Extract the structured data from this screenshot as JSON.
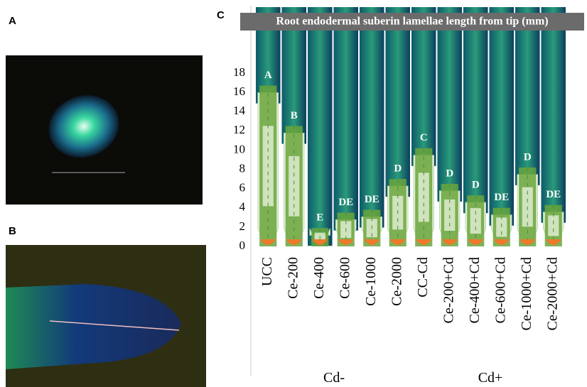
{
  "panels": [
    "A",
    "B",
    "C"
  ],
  "chart_data": {
    "type": "bar",
    "title": "Root endodermal suberin lamellae length from tip (mm)",
    "categories": [
      "UCC",
      "Ce-200",
      "Ce-400",
      "Ce-600",
      "Ce-1000",
      "Ce-2000",
      "CC-Cd",
      "Ce-200+Cd",
      "Ce-400+Cd",
      "Ce-600+Cd",
      "Ce-1000+Cd",
      "Ce-2000+Cd"
    ],
    "values": [
      16.7,
      12.5,
      1.9,
      3.5,
      3.8,
      7.0,
      10.2,
      6.5,
      5.3,
      4.0,
      8.2,
      4.3
    ],
    "annotations": [
      "A",
      "B",
      "E",
      "DE",
      "DE",
      "D",
      "C",
      "D",
      "D",
      "DE",
      "D",
      "DE"
    ],
    "groups": [
      "Cd-",
      "Cd+"
    ],
    "color": "#6aa53c",
    "ylim": [
      0,
      18
    ],
    "yticks": [
      0,
      2,
      4,
      6,
      8,
      10,
      12,
      14,
      16,
      18
    ]
  }
}
